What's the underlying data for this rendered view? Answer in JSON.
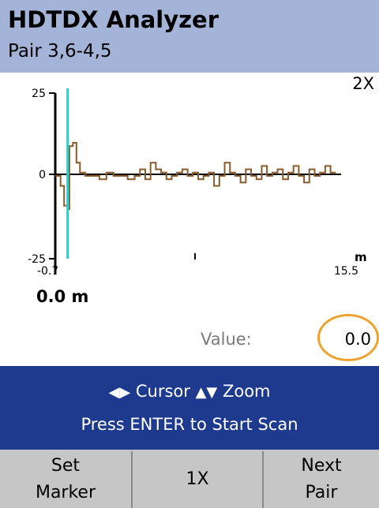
{
  "header": {
    "title": "HDTDX Analyzer",
    "subtitle": "Pair 3,6-4,5"
  },
  "plot": {
    "zoom_indicator": "2X",
    "y_max_label": "25",
    "y_zero_label": "0",
    "y_min_label": "-25",
    "x_start_label": "-0.7",
    "x_end_label": "15.5",
    "x_unit_label": "m",
    "cursor_position": "0.0 m",
    "colors": {
      "trace": "#8b5a2b",
      "cursor": "#3fc7c7",
      "baseline": "#000000"
    }
  },
  "chart_data": {
    "type": "line",
    "xlim": [
      -0.7,
      15.5
    ],
    "ylim": [
      -25,
      25
    ],
    "cursor_x": 0.0,
    "series": [
      {
        "x": [
          -0.7,
          -0.4,
          -0.2,
          0.0,
          0.1,
          0.3,
          0.5,
          0.7,
          1.0,
          1.4,
          1.8,
          2.2,
          2.6,
          3.0,
          3.4,
          3.8,
          4.1,
          4.4,
          4.7,
          5.0,
          5.3,
          5.6,
          5.9,
          6.2,
          6.5,
          6.8,
          7.1,
          7.4,
          7.7,
          8.0,
          8.3,
          8.6,
          8.9,
          9.2,
          9.5,
          9.8,
          10.1,
          10.4,
          10.7,
          11.0,
          11.3,
          11.6,
          11.9,
          12.2,
          12.5,
          12.8,
          13.1,
          13.4,
          13.7,
          14.0,
          14.3,
          14.6,
          14.9
        ],
        "y": [
          0,
          -3,
          -9,
          -10,
          9,
          10,
          4,
          1,
          0,
          0,
          -1,
          1,
          0,
          0,
          -1,
          0,
          2,
          -1,
          4,
          2,
          1,
          -1,
          0,
          1,
          2,
          0,
          1,
          -1,
          0,
          1,
          -3,
          0,
          4,
          1,
          0,
          -2,
          2,
          0,
          -1,
          3,
          0,
          1,
          2,
          -1,
          1,
          3,
          0,
          -2,
          2,
          0,
          1,
          3,
          1
        ]
      }
    ]
  },
  "readout": {
    "label": "Value:",
    "value": "0.0"
  },
  "status": {
    "line1_cursor": "Cursor",
    "line1_zoom": "Zoom",
    "line2": "Press ENTER to Start Scan"
  },
  "softkeys": {
    "key1_line1": "Set",
    "key1_line2": "Marker",
    "key2": "1X",
    "key3_line1": "Next",
    "key3_line2": "Pair"
  }
}
